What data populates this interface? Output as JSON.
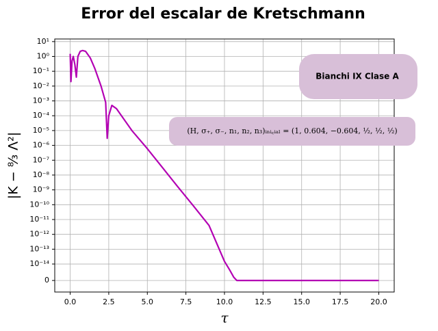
{
  "chart_data": {
    "type": "line",
    "title": "Error del escalar de Kretschmann",
    "x_label": "τ",
    "y_label": "|K − ⁸⁄₃ Λ²|",
    "annotations": [
      "Bianchi IX Clase A",
      "(H, σ₊, σ₋, n₁, n₂, n₃)ᵢₙᵢ꜀ᵢₐₗ = (1, 0.604, −0.604, ½, ½, ½)"
    ],
    "yscale": "symlog",
    "linthresh": 1e-14,
    "color": "#b300b3",
    "grid": true,
    "x": [
      0,
      0.05,
      0.12,
      0.2,
      0.3,
      0.4,
      0.5,
      0.65,
      0.8,
      1.0,
      1.3,
      1.6,
      2.0,
      2.3,
      2.4,
      2.5,
      2.7,
      3.0,
      4.0,
      5.0,
      6.0,
      7.0,
      8.0,
      9.0,
      10.0,
      10.3,
      10.6,
      10.8,
      11,
      20
    ],
    "values": [
      1.5,
      0.02,
      0.5,
      1,
      0.3,
      0.04,
      1,
      2.2,
      2.5,
      2.2,
      0.8,
      0.15,
      0.01,
      0.0008,
      3e-06,
      0.0001,
      0.0005,
      0.0003,
      1e-05,
      6e-07,
      3e-08,
      1.5e-09,
      8e-11,
      4e-12,
      1.5e-14,
      7e-15,
      2e-15,
      0,
      0,
      0
    ],
    "xlim": [
      -1,
      21
    ],
    "xticks": [
      {
        "value": 0,
        "label": "0.0"
      },
      2.5,
      {
        "value": 5,
        "label": "5.0"
      },
      7.5,
      {
        "value": 10,
        "label": "10.0"
      },
      12.5,
      {
        "value": 15,
        "label": "15.0"
      },
      17.5,
      {
        "value": 20,
        "label": "20.0"
      }
    ],
    "ylim": [
      -7e-15,
      15
    ],
    "yticks": [
      {
        "value": 10,
        "label": "10¹"
      },
      {
        "value": 1,
        "label": "10⁰"
      },
      {
        "value": 0.1,
        "label": "10⁻¹"
      },
      {
        "value": 0.01,
        "label": "10⁻²"
      },
      {
        "value": 0.001,
        "label": "10⁻³"
      },
      {
        "value": 0.0001,
        "label": "10⁻⁴"
      },
      {
        "value": 1e-05,
        "label": "10⁻⁵"
      },
      {
        "value": 1e-06,
        "label": "10⁻⁶"
      },
      {
        "value": 1e-07,
        "label": "10⁻⁷"
      },
      {
        "value": 1e-08,
        "label": "10⁻⁸"
      },
      {
        "value": 1e-09,
        "label": "10⁻⁹"
      },
      {
        "value": 1e-10,
        "label": "10⁻¹⁰"
      },
      {
        "value": 1e-11,
        "label": "10⁻¹¹"
      },
      {
        "value": 1e-12,
        "label": "10⁻¹²"
      },
      {
        "value": 1e-13,
        "label": "10⁻¹³"
      },
      {
        "value": 1e-14,
        "label": "10⁻¹⁴"
      },
      0
    ]
  }
}
